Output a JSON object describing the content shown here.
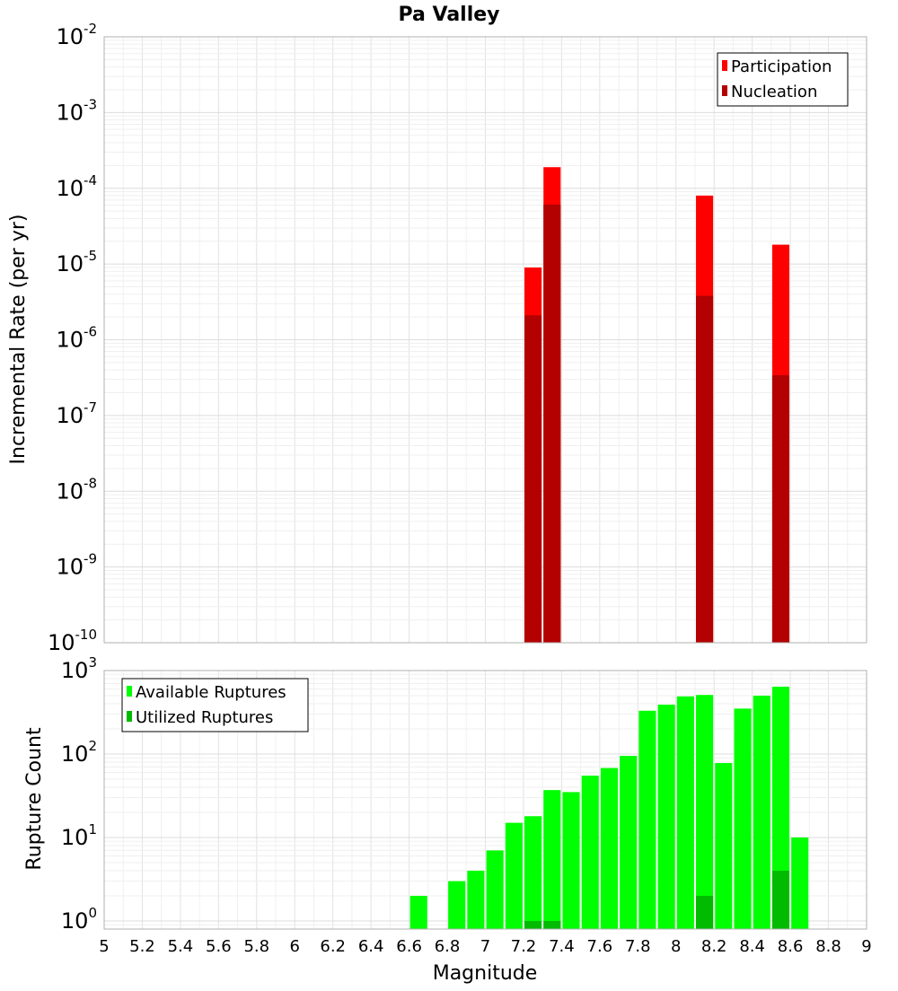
{
  "chart_data": [
    {
      "type": "bar",
      "title": "Pa Valley",
      "ylabel": "Incremental Rate (per yr)",
      "xlabel": "",
      "y_scale": "log",
      "ylim": [
        1e-10,
        0.01
      ],
      "xlim": [
        5,
        9
      ],
      "legend_position": "top-right",
      "series": [
        {
          "name": "Participation",
          "color": "#ff0000",
          "points": [
            {
              "x": 7.25,
              "y": 9e-06
            },
            {
              "x": 7.35,
              "y": 0.00019
            },
            {
              "x": 8.15,
              "y": 8e-05
            },
            {
              "x": 8.55,
              "y": 1.8e-05
            }
          ]
        },
        {
          "name": "Nucleation",
          "color": "#b30000",
          "points": [
            {
              "x": 7.25,
              "y": 2.1e-06
            },
            {
              "x": 7.35,
              "y": 6.1e-05
            },
            {
              "x": 8.15,
              "y": 3.8e-06
            },
            {
              "x": 8.55,
              "y": 3.4e-07
            }
          ]
        }
      ],
      "y_ticks": [
        {
          "base": "10",
          "exp": "-2",
          "value": 0.01
        },
        {
          "base": "10",
          "exp": "-3",
          "value": 0.001
        },
        {
          "base": "10",
          "exp": "-4",
          "value": 0.0001
        },
        {
          "base": "10",
          "exp": "-5",
          "value": 1e-05
        },
        {
          "base": "10",
          "exp": "-6",
          "value": 1e-06
        },
        {
          "base": "10",
          "exp": "-7",
          "value": 1e-07
        },
        {
          "base": "10",
          "exp": "-8",
          "value": 1e-08
        },
        {
          "base": "10",
          "exp": "-9",
          "value": 1e-09
        },
        {
          "base": "10",
          "exp": "-10",
          "value": 1e-10
        }
      ]
    },
    {
      "type": "bar",
      "title": "",
      "ylabel": "Rupture Count",
      "xlabel": "Magnitude",
      "y_scale": "log",
      "ylim": [
        0.8,
        1000
      ],
      "xlim": [
        5,
        9
      ],
      "legend_position": "top-left",
      "series": [
        {
          "name": "Available Ruptures",
          "color": "#00ff00",
          "points": [
            {
              "x": 6.65,
              "y": 2
            },
            {
              "x": 6.85,
              "y": 3
            },
            {
              "x": 6.95,
              "y": 4
            },
            {
              "x": 7.05,
              "y": 7
            },
            {
              "x": 7.15,
              "y": 15
            },
            {
              "x": 7.25,
              "y": 18
            },
            {
              "x": 7.35,
              "y": 37
            },
            {
              "x": 7.45,
              "y": 35
            },
            {
              "x": 7.55,
              "y": 55
            },
            {
              "x": 7.65,
              "y": 68
            },
            {
              "x": 7.75,
              "y": 95
            },
            {
              "x": 7.85,
              "y": 330
            },
            {
              "x": 7.95,
              "y": 390
            },
            {
              "x": 8.05,
              "y": 490
            },
            {
              "x": 8.15,
              "y": 510
            },
            {
              "x": 8.25,
              "y": 78
            },
            {
              "x": 8.35,
              "y": 350
            },
            {
              "x": 8.45,
              "y": 500
            },
            {
              "x": 8.55,
              "y": 640
            },
            {
              "x": 8.65,
              "y": 10
            }
          ]
        },
        {
          "name": "Utilized Ruptures",
          "color": "#00bb00",
          "points": [
            {
              "x": 7.25,
              "y": 1
            },
            {
              "x": 7.35,
              "y": 1
            },
            {
              "x": 8.15,
              "y": 2
            },
            {
              "x": 8.55,
              "y": 4
            }
          ]
        }
      ],
      "y_ticks": [
        {
          "base": "10",
          "exp": "3",
          "value": 1000
        },
        {
          "base": "10",
          "exp": "2",
          "value": 100
        },
        {
          "base": "10",
          "exp": "1",
          "value": 10
        },
        {
          "base": "10",
          "exp": "0",
          "value": 1
        }
      ],
      "x_ticks": [
        "5",
        "5.2",
        "5.4",
        "5.6",
        "5.8",
        "6",
        "6.2",
        "6.4",
        "6.6",
        "6.8",
        "7",
        "7.2",
        "7.4",
        "7.6",
        "7.8",
        "8",
        "8.2",
        "8.4",
        "8.6",
        "8.8",
        "9"
      ]
    }
  ]
}
